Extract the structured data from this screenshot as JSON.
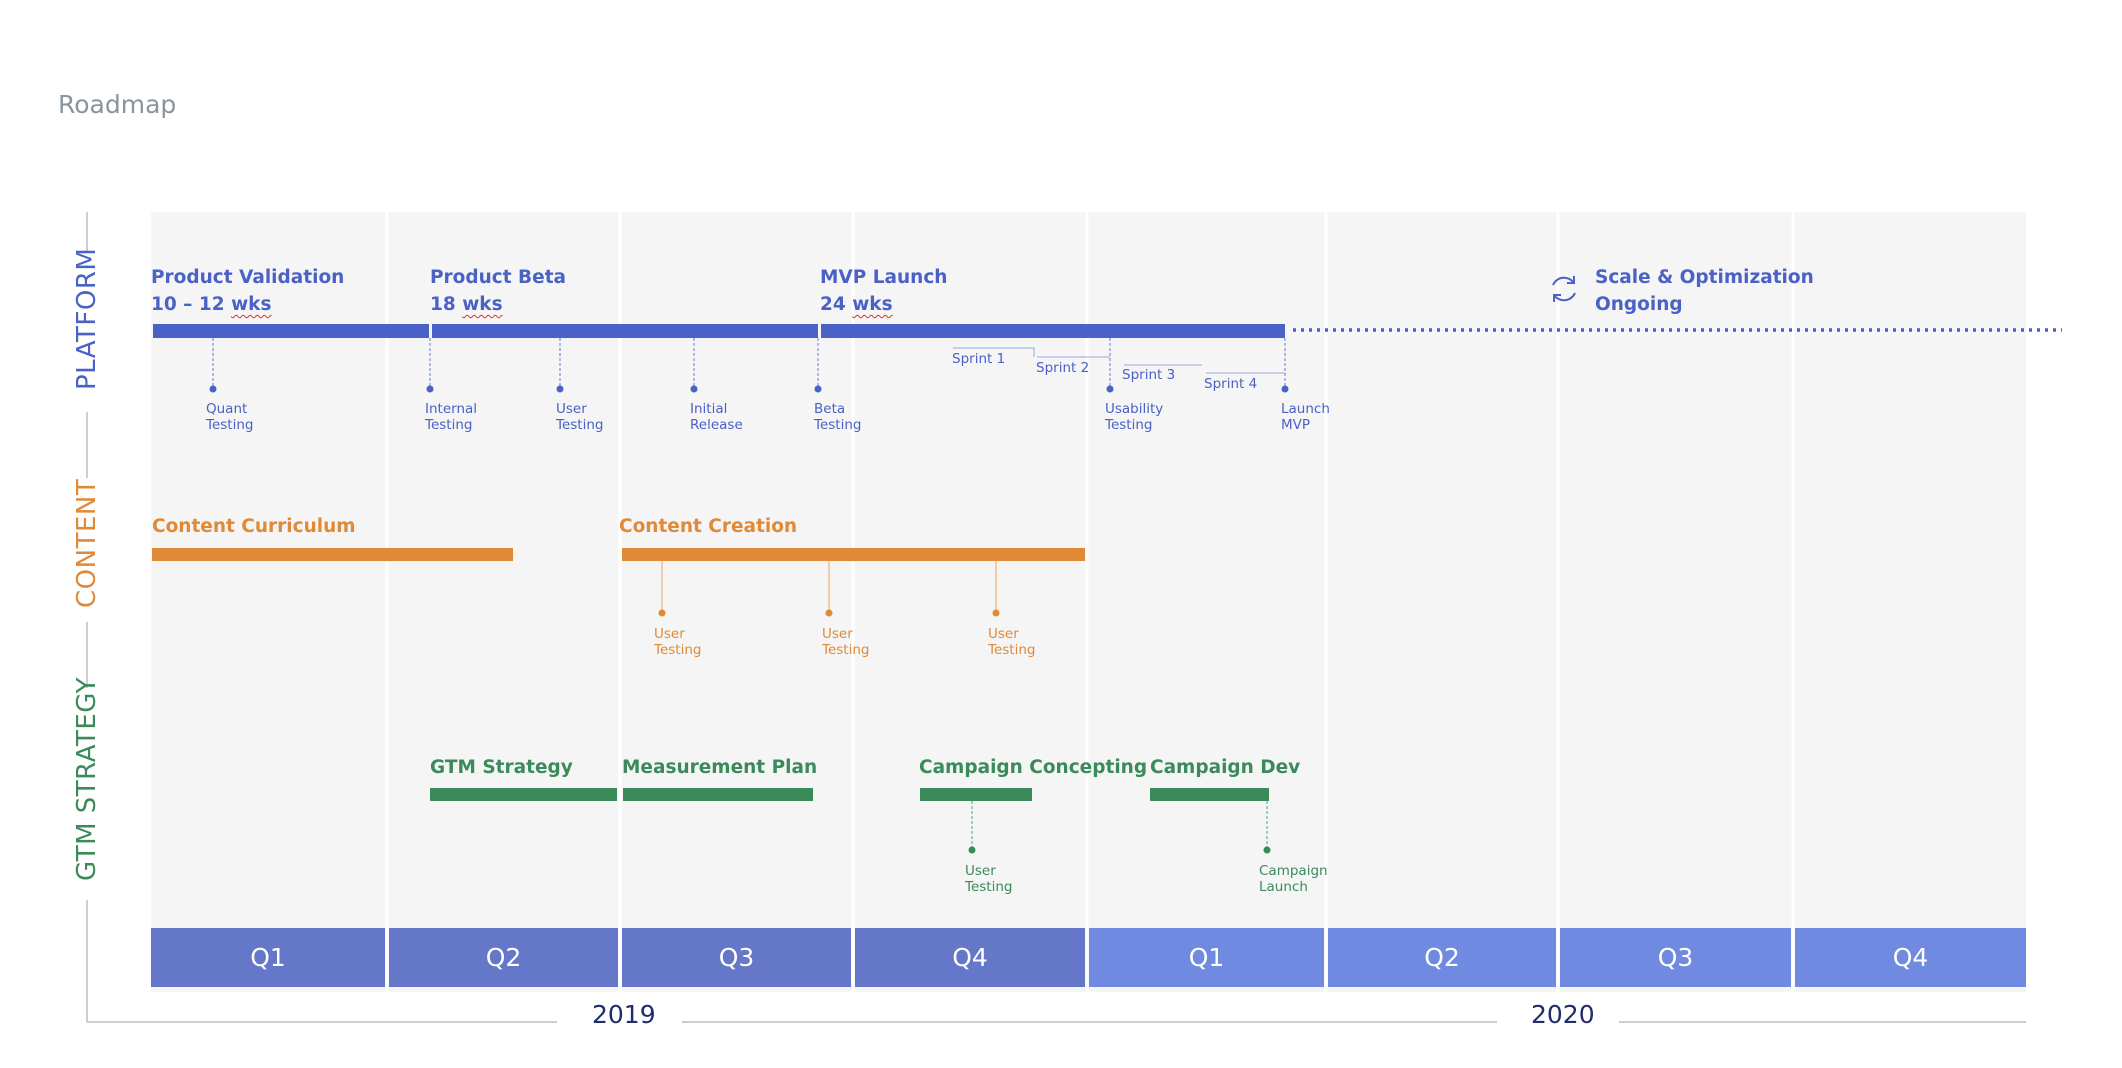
{
  "page_title": "Roadmap",
  "colors": {
    "platform": "#4a61c5",
    "content": "#e08a37",
    "gtm": "#3a8a5a",
    "year2019_quarter": "#6577c8",
    "year2020_quarter": "#6f8ae0",
    "background_panel": "#f5f5f5"
  },
  "lanes": {
    "platform": "PLATFORM",
    "content": "CONTENT",
    "gtm": "GTM STRATEGY"
  },
  "platform": {
    "phases": [
      {
        "name": "Product Validation",
        "duration_prefix": "10 – 12 ",
        "duration_unit": "wks"
      },
      {
        "name": "Product Beta",
        "duration_prefix": "18 ",
        "duration_unit": "wks"
      },
      {
        "name": "MVP Launch",
        "duration_prefix": "24 ",
        "duration_unit": "wks"
      },
      {
        "name": "Scale & Optimization",
        "duration_prefix": "Ongoing",
        "duration_unit": ""
      }
    ],
    "milestones": [
      {
        "line1": "Quant",
        "line2": "Testing"
      },
      {
        "line1": "Internal",
        "line2": "Testing"
      },
      {
        "line1": "User",
        "line2": "Testing"
      },
      {
        "line1": "Initial",
        "line2": "Release"
      },
      {
        "line1": "Beta",
        "line2": "Testing"
      },
      {
        "line1": "Usability",
        "line2": "Testing"
      },
      {
        "line1": "Launch",
        "line2": "MVP"
      }
    ],
    "sprints": [
      "Sprint 1",
      "Sprint 2",
      "Sprint 3",
      "Sprint 4"
    ]
  },
  "content": {
    "phases": [
      "Content Curriculum",
      "Content Creation"
    ],
    "milestones": [
      {
        "line1": "User",
        "line2": "Testing"
      },
      {
        "line1": "User",
        "line2": "Testing"
      },
      {
        "line1": "User",
        "line2": "Testing"
      }
    ]
  },
  "gtm": {
    "phases": [
      "GTM Strategy",
      "Measurement Plan",
      "Campaign Concepting",
      "Campaign Dev"
    ],
    "milestones": [
      {
        "line1": "User",
        "line2": "Testing"
      },
      {
        "line1": "Campaign",
        "line2": "Launch"
      }
    ]
  },
  "quarters": [
    "Q1",
    "Q2",
    "Q3",
    "Q4",
    "Q1",
    "Q2",
    "Q3",
    "Q4"
  ],
  "years": [
    "2019",
    "2020"
  ]
}
